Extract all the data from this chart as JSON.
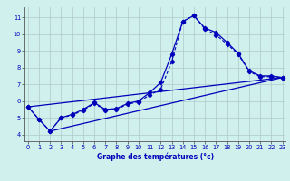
{
  "xlabel": "Graphe des températures (°c)",
  "x_ticks": [
    0,
    1,
    2,
    3,
    4,
    5,
    6,
    7,
    8,
    9,
    10,
    11,
    12,
    13,
    14,
    15,
    16,
    17,
    18,
    19,
    20,
    21,
    22,
    23
  ],
  "y_ticks": [
    4,
    5,
    6,
    7,
    8,
    9,
    10,
    11
  ],
  "ylim": [
    3.6,
    11.6
  ],
  "xlim": [
    -0.3,
    23.3
  ],
  "background_color": "#cff0ec",
  "line_color": "#0000bb",
  "grid_color": "#b0c8c8",
  "series_main": {
    "x": [
      0,
      1,
      2,
      3,
      4,
      5,
      6,
      7,
      8,
      9,
      10,
      11,
      12,
      13,
      14,
      15,
      16,
      17,
      18,
      19,
      20,
      21,
      22,
      23
    ],
    "y": [
      5.65,
      4.9,
      4.2,
      5.0,
      5.2,
      5.5,
      5.9,
      5.5,
      5.55,
      5.85,
      6.0,
      6.5,
      7.1,
      8.8,
      10.75,
      11.1,
      10.35,
      10.1,
      9.5,
      8.85,
      7.8,
      7.5,
      7.5,
      7.4
    ]
  },
  "series_dashed": {
    "x": [
      0,
      1,
      2,
      3,
      4,
      5,
      6,
      7,
      8,
      9,
      10,
      11,
      12,
      13,
      14,
      15,
      16,
      17,
      18,
      19,
      20,
      21,
      22,
      23
    ],
    "y": [
      5.65,
      4.9,
      4.2,
      5.0,
      5.15,
      5.45,
      5.85,
      5.45,
      5.5,
      5.8,
      5.95,
      6.35,
      6.7,
      8.35,
      10.75,
      11.1,
      10.3,
      9.95,
      9.4,
      8.8,
      7.75,
      7.45,
      7.45,
      7.4
    ]
  },
  "series_straight1": {
    "x": [
      0,
      23
    ],
    "y": [
      5.65,
      7.4
    ]
  },
  "series_straight2": {
    "x": [
      2,
      23
    ],
    "y": [
      4.2,
      7.4
    ]
  }
}
